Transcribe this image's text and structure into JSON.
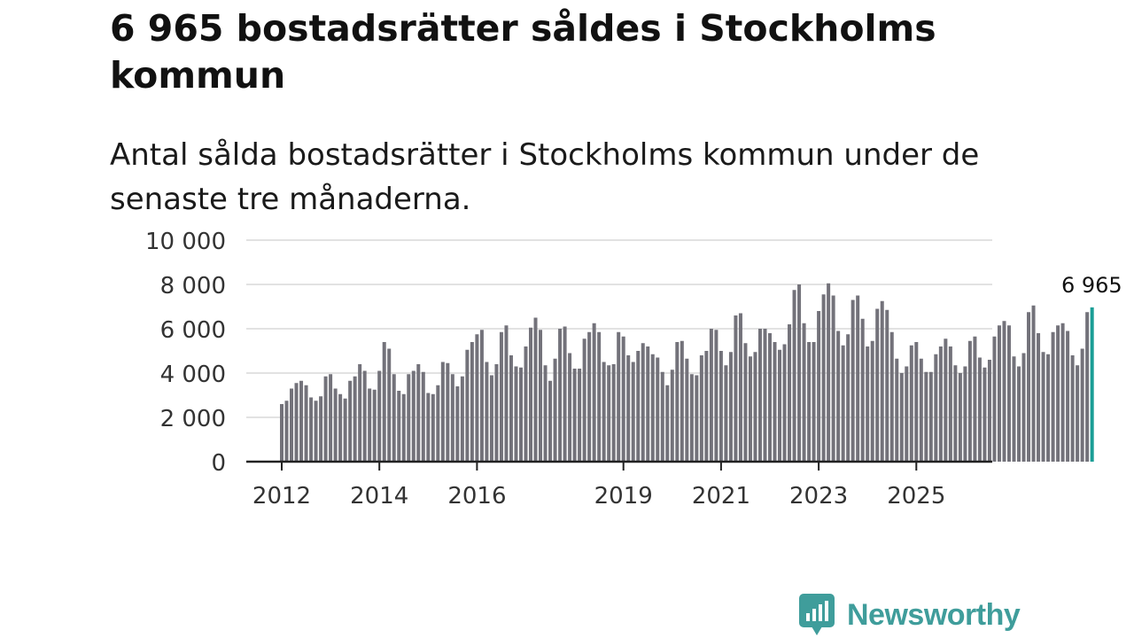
{
  "header": {
    "title": "6 965 bostadsrätter såldes i Stockholms kommun",
    "subtitle": "Antal sålda bostadsrätter i Stockholms kommun under de senaste tre månaderna."
  },
  "brand": {
    "name": "Newsworthy",
    "color": "#3f9d9b"
  },
  "colors": {
    "bar": "#73727a",
    "highlight": "#1a9e96",
    "grid": "#d9d9d9",
    "axis": "#222222"
  },
  "chart_data": {
    "type": "bar",
    "title": "6 965 bostadsrätter såldes i Stockholms kommun",
    "xlabel": "",
    "ylabel": "",
    "ylim": [
      0,
      10000
    ],
    "grid": true,
    "y_ticks": [
      0,
      2000,
      4000,
      6000,
      8000,
      10000
    ],
    "y_tick_labels": [
      "0",
      "2 000",
      "4 000",
      "6 000",
      "8 000",
      "10 000"
    ],
    "x_tick_labels": [
      "2012",
      "2014",
      "2016",
      "2019",
      "2021",
      "2023",
      "2025"
    ],
    "x_tick_index": [
      0,
      20,
      40,
      70,
      90,
      110,
      130
    ],
    "highlight_label": "6 965",
    "categories_note": "Monthly bars, 2012 to 2025; last bar highlighted",
    "values": [
      2600,
      2750,
      3300,
      3550,
      3650,
      3450,
      2900,
      2750,
      2950,
      3850,
      3950,
      3300,
      3050,
      2850,
      3650,
      3850,
      4400,
      4100,
      3300,
      3250,
      4100,
      5400,
      5100,
      3950,
      3200,
      3050,
      3950,
      4100,
      4400,
      4050,
      3100,
      3050,
      3450,
      4500,
      4450,
      3950,
      3400,
      3850,
      5050,
      5400,
      5750,
      5950,
      4500,
      3900,
      4400,
      5850,
      6150,
      4800,
      4300,
      4250,
      5200,
      6050,
      6500,
      5950,
      4350,
      3650,
      4650,
      6000,
      6100,
      4900,
      4200,
      4200,
      5550,
      5850,
      6250,
      5850,
      4500,
      4350,
      4400,
      5850,
      5650,
      4800,
      4500,
      5000,
      5350,
      5200,
      4850,
      4700,
      4050,
      3450,
      4150,
      5400,
      5450,
      4650,
      3950,
      3900,
      4800,
      5000,
      6000,
      5950,
      5000,
      4350,
      4950,
      6600,
      6700,
      5350,
      4750,
      4950,
      6000,
      6000,
      5800,
      5400,
      5050,
      5300,
      6200,
      7750,
      8000,
      6250,
      5400,
      5400,
      6800,
      7550,
      8050,
      7500,
      5900,
      5250,
      5750,
      7300,
      7500,
      6450,
      5200,
      5450,
      6900,
      7250,
      6850,
      5850,
      4650,
      4000,
      4300,
      5250,
      5400,
      4650,
      4050,
      4050,
      4850,
      5200,
      5550,
      5200,
      4350,
      4000,
      4300,
      5450,
      5650,
      4700,
      4250,
      4600,
      5650,
      6150,
      6350,
      6150,
      4750,
      4300,
      4900,
      6750,
      7050,
      5800,
      4950,
      4850,
      5850,
      6150,
      6250,
      5900,
      4800,
      4350,
      5100,
      6750,
      6965
    ]
  }
}
